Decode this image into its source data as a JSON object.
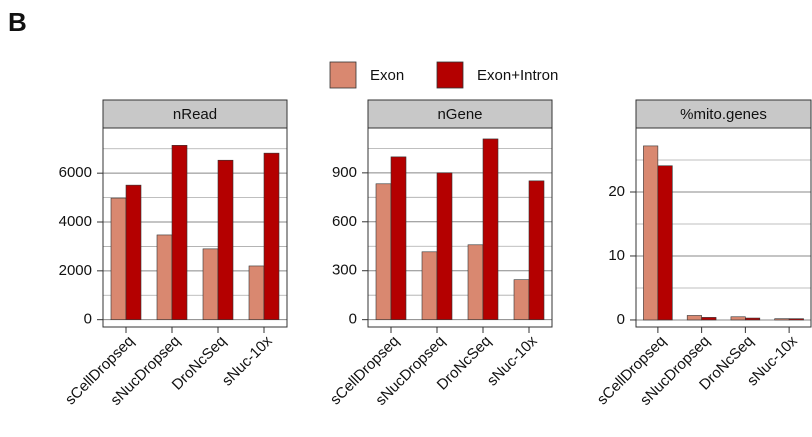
{
  "panel_label": "B",
  "chart_data": [
    {
      "type": "bar",
      "title": "nRead",
      "categories": [
        "sCellDropseq",
        "sNucDropseq",
        "DroNcSeq",
        "sNuc-10x"
      ],
      "series": [
        {
          "name": "Exon",
          "color": "#D98870",
          "values": [
            4980,
            3470,
            2900,
            2200
          ]
        },
        {
          "name": "Exon+Intron",
          "color": "#B40000",
          "values": [
            5510,
            7140,
            6530,
            6820
          ]
        }
      ],
      "ylim": [
        -300,
        7850
      ],
      "yticks": [
        0,
        2000,
        4000,
        6000
      ],
      "minor_gridlines": [
        1000,
        3000,
        5000,
        7000
      ],
      "grid": true
    },
    {
      "type": "bar",
      "title": "nGene",
      "categories": [
        "sCellDropseq",
        "sNucDropseq",
        "DroNcSeq",
        "sNuc-10x"
      ],
      "series": [
        {
          "name": "Exon",
          "color": "#D98870",
          "values": [
            833,
            416,
            459,
            245
          ]
        },
        {
          "name": "Exon+Intron",
          "color": "#B40000",
          "values": [
            998,
            900,
            1108,
            851
          ]
        }
      ],
      "ylim": [
        -45,
        1175
      ],
      "yticks": [
        0,
        300,
        600,
        900
      ],
      "minor_gridlines": [
        150,
        450,
        750,
        1050
      ],
      "grid": true
    },
    {
      "type": "bar",
      "title": "%mito.genes",
      "categories": [
        "sCellDropseq",
        "sNucDropseq",
        "DroNcSeq",
        "sNuc-10x"
      ],
      "series": [
        {
          "name": "Exon",
          "color": "#D98870",
          "values": [
            27.2,
            0.7,
            0.5,
            0.2
          ]
        },
        {
          "name": "Exon+Intron",
          "color": "#B40000",
          "values": [
            24.1,
            0.4,
            0.3,
            0.2
          ]
        }
      ],
      "ylim": [
        -1.1,
        30
      ],
      "yticks": [
        0,
        10,
        20
      ],
      "minor_gridlines": [
        5,
        15,
        25
      ],
      "grid": true
    }
  ]
}
